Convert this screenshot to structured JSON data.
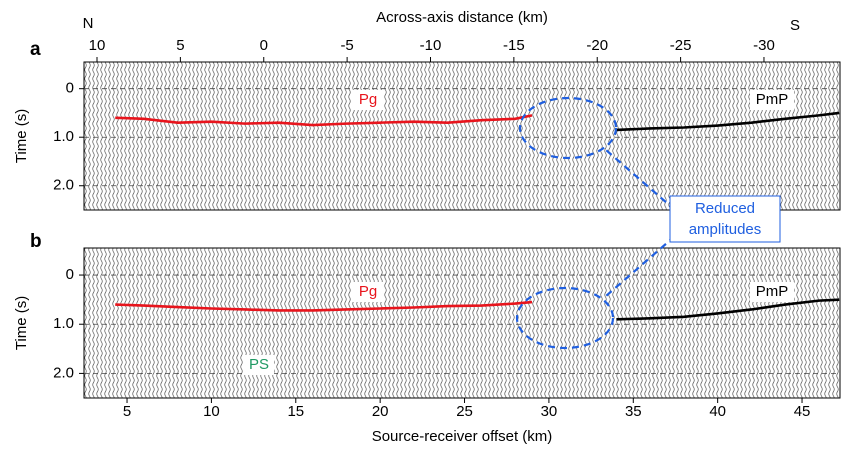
{
  "chart_data": [
    {
      "type": "line",
      "panel_label": "a",
      "x2label": "Across-axis distance (km)",
      "ylabel": "Time (s)",
      "annotations": [
        "N",
        "S",
        "Pg",
        "PmP"
      ],
      "xlim": [
        2.45,
        47.25
      ],
      "x2lim": [
        10.78,
        -34.56
      ],
      "x2ticks": [
        10,
        5,
        0,
        -5,
        -10,
        -15,
        -20,
        -25,
        -30
      ],
      "ylim": [
        -0.55,
        2.5
      ],
      "y_inverted": true,
      "yticks": [
        0,
        {
          "value": 1,
          "label": "1.0"
        },
        {
          "value": 2,
          "label": "2.0"
        }
      ],
      "grid": true,
      "x": [
        4.3,
        6,
        8,
        10,
        12,
        14,
        16,
        18,
        20,
        22,
        24,
        26,
        28,
        29,
        34,
        36,
        38,
        40,
        42,
        44,
        46,
        47.2
      ],
      "series": [
        {
          "name": "Pg",
          "color": "#e8141c",
          "values": [
            0.6,
            0.62,
            0.7,
            0.68,
            0.72,
            0.7,
            0.75,
            0.72,
            0.7,
            0.68,
            0.7,
            0.65,
            0.62,
            0.55,
            null,
            null,
            null,
            null,
            null,
            null,
            null,
            null
          ]
        },
        {
          "name": "PmP",
          "color": "#000000",
          "values": [
            null,
            null,
            null,
            null,
            null,
            null,
            null,
            null,
            null,
            null,
            null,
            null,
            null,
            null,
            0.85,
            0.82,
            0.8,
            0.76,
            0.7,
            0.62,
            0.55,
            0.5
          ]
        }
      ]
    },
    {
      "type": "line",
      "panel_label": "b",
      "xlabel": "Source-receiver offset (km)",
      "ylabel": "Time (s)",
      "annotations": [
        "Pg",
        "PmP",
        "PS"
      ],
      "xlim": [
        2.45,
        47.25
      ],
      "xticks": [
        5,
        10,
        15,
        20,
        25,
        30,
        35,
        40,
        45
      ],
      "ylim": [
        -0.55,
        2.5
      ],
      "y_inverted": true,
      "yticks": [
        0,
        {
          "value": 1,
          "label": "1.0"
        },
        {
          "value": 2,
          "label": "2.0"
        }
      ],
      "grid": true,
      "x": [
        4.3,
        6,
        8,
        10,
        12,
        14,
        16,
        18,
        20,
        22,
        24,
        26,
        28,
        29,
        34,
        36,
        38,
        40,
        42,
        44,
        46,
        47.2
      ],
      "series": [
        {
          "name": "Pg",
          "color": "#e8141c",
          "values": [
            0.6,
            0.62,
            0.65,
            0.68,
            0.7,
            0.72,
            0.72,
            0.7,
            0.68,
            0.66,
            0.63,
            0.62,
            0.58,
            0.55,
            null,
            null,
            null,
            null,
            null,
            null,
            null,
            null
          ]
        },
        {
          "name": "PmP",
          "color": "#000000",
          "values": [
            null,
            null,
            null,
            null,
            null,
            null,
            null,
            null,
            null,
            null,
            null,
            null,
            null,
            null,
            0.9,
            0.88,
            0.85,
            0.78,
            0.7,
            0.6,
            0.52,
            0.5
          ]
        }
      ]
    }
  ],
  "callout": [
    "Reduced",
    "amplitudes"
  ]
}
